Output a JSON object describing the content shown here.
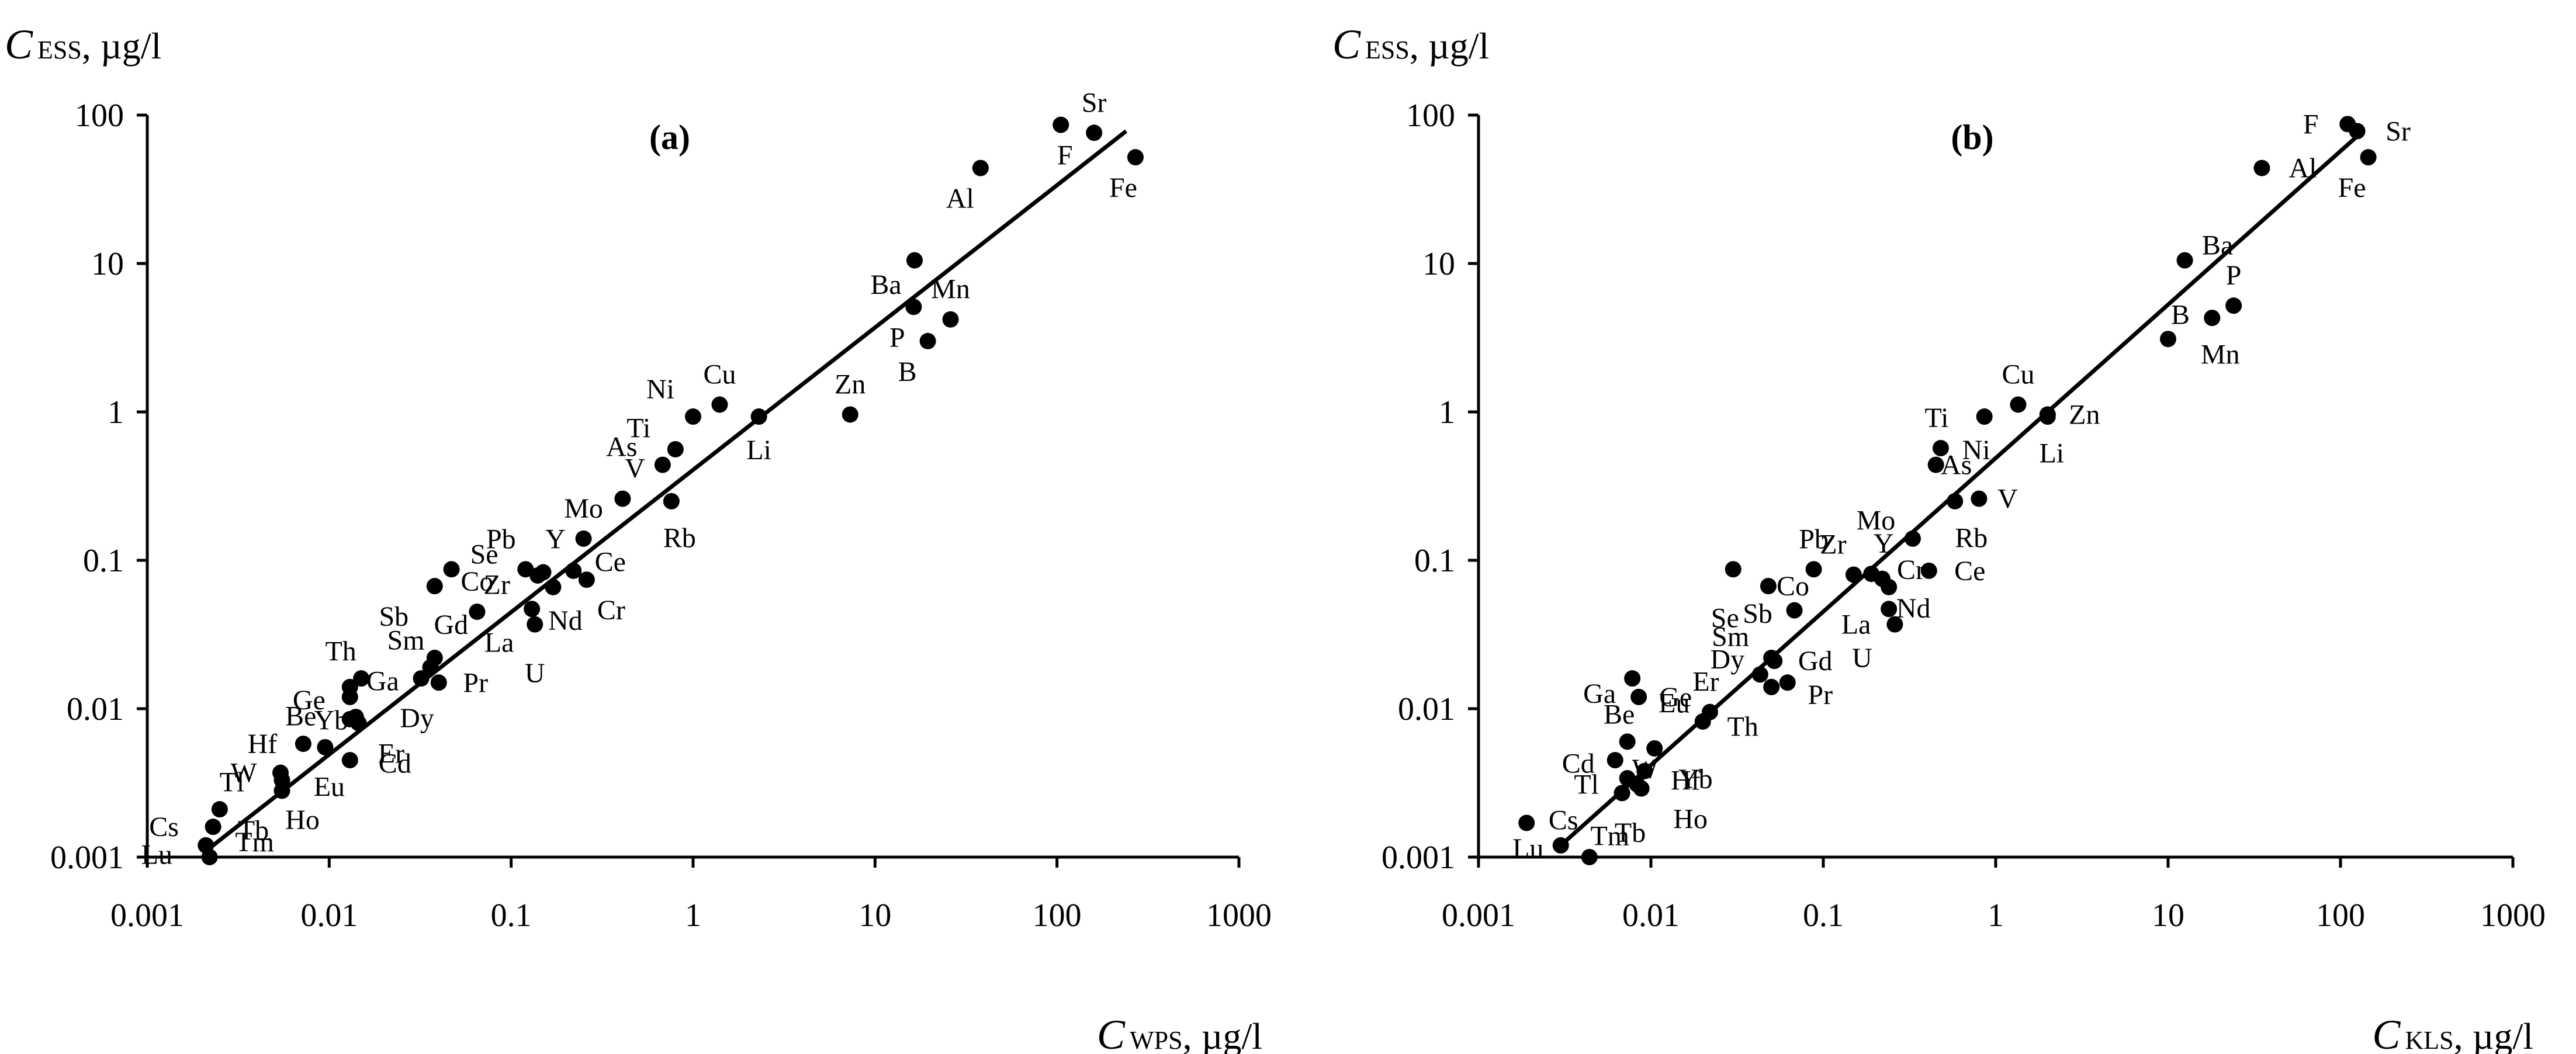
{
  "chart_data": [
    {
      "type": "scatter",
      "panel_label": "(a)",
      "x_scale": "log",
      "y_scale": "log",
      "xlim": [
        0.001,
        1000
      ],
      "ylim": [
        0.001,
        100
      ],
      "xlabel": {
        "symbol": "C",
        "subscript": "WPS",
        "unit": ", µg/l"
      },
      "ylabel": {
        "symbol": "C",
        "subscript": "ESS",
        "unit": ", µg/l"
      },
      "x_ticks": [
        "0.001",
        "0.01",
        "0.1",
        "1",
        "10",
        "100",
        "1000"
      ],
      "y_ticks": [
        "0.001",
        "0.01",
        "0.1",
        "1",
        "10",
        "100"
      ],
      "trendline": {
        "x1": 0.0021,
        "y1": 0.0011,
        "x2": 240,
        "y2": 78
      },
      "points": [
        {
          "label": "Sr",
          "x": 160,
          "y": 76,
          "lx": 0,
          "ly": -1
        },
        {
          "label": "F",
          "x": 105,
          "y": 86,
          "lx": 0.1,
          "ly": 1
        },
        {
          "label": "Fe",
          "x": 270,
          "y": 52,
          "lx": -0.3,
          "ly": 1
        },
        {
          "label": "Al",
          "x": 38,
          "y": 44,
          "lx": -0.5,
          "ly": 1
        },
        {
          "label": "Ba",
          "x": 16.5,
          "y": 10.5,
          "lx": -0.7,
          "ly": 0.8
        },
        {
          "label": "Mn",
          "x": 26,
          "y": 4.2,
          "lx": 0,
          "ly": -1
        },
        {
          "label": "P",
          "x": 16.3,
          "y": 5.1,
          "lx": -0.4,
          "ly": 1
        },
        {
          "label": "B",
          "x": 19.5,
          "y": 3.0,
          "lx": -0.5,
          "ly": 1
        },
        {
          "label": "Cu",
          "x": 1.4,
          "y": 1.12,
          "lx": 0,
          "ly": -1
        },
        {
          "label": "Ni",
          "x": 1.0,
          "y": 0.93,
          "lx": -0.8,
          "ly": -0.9
        },
        {
          "label": "Li",
          "x": 2.3,
          "y": 0.93,
          "lx": 0,
          "ly": 1.1
        },
        {
          "label": "Zn",
          "x": 7.3,
          "y": 0.96,
          "lx": 0,
          "ly": -1
        },
        {
          "label": "Ti",
          "x": 0.8,
          "y": 0.56,
          "lx": -0.9,
          "ly": -0.7
        },
        {
          "label": "As",
          "x": 0.68,
          "y": 0.44,
          "lx": -1,
          "ly": -0.6
        },
        {
          "label": "V",
          "x": 0.41,
          "y": 0.26,
          "lx": 0.3,
          "ly": -1
        },
        {
          "label": "Rb",
          "x": 0.76,
          "y": 0.25,
          "lx": 0.2,
          "ly": 1.2
        },
        {
          "label": "Mo",
          "x": 0.25,
          "y": 0.14,
          "lx": 0,
          "ly": -1
        },
        {
          "label": "Pb",
          "x": 0.12,
          "y": 0.087,
          "lx": -0.6,
          "ly": -1
        },
        {
          "label": "Y",
          "x": 0.15,
          "y": 0.083,
          "lx": 0.3,
          "ly": -1.1
        },
        {
          "label": "Ce",
          "x": 0.22,
          "y": 0.085,
          "lx": 0.9,
          "ly": -0.3
        },
        {
          "label": "Zr",
          "x": 0.14,
          "y": 0.079,
          "lx": -1,
          "ly": 0.3
        },
        {
          "label": "Nd",
          "x": 0.17,
          "y": 0.066,
          "lx": 0.3,
          "ly": 1.1
        },
        {
          "label": "Cr",
          "x": 0.26,
          "y": 0.074,
          "lx": 0.6,
          "ly": 1
        },
        {
          "label": "La",
          "x": 0.13,
          "y": 0.047,
          "lx": -0.8,
          "ly": 1.1
        },
        {
          "label": "U",
          "x": 0.135,
          "y": 0.037,
          "lx": 0,
          "ly": 1.6
        },
        {
          "label": "Se",
          "x": 0.047,
          "y": 0.087,
          "lx": 0.8,
          "ly": -0.5
        },
        {
          "label": "Sb",
          "x": 0.038,
          "y": 0.067,
          "lx": -1,
          "ly": 1
        },
        {
          "label": "Co",
          "x": 0.065,
          "y": 0.045,
          "lx": 0,
          "ly": -1
        },
        {
          "label": "Gd",
          "x": 0.038,
          "y": 0.022,
          "lx": 0.4,
          "ly": -1.1
        },
        {
          "label": "Sm",
          "x": 0.036,
          "y": 0.019,
          "lx": -0.6,
          "ly": -0.9
        },
        {
          "label": "Pr",
          "x": 0.04,
          "y": 0.015,
          "lx": 0.9,
          "ly": 0
        },
        {
          "label": "Dy",
          "x": 0.032,
          "y": 0.016,
          "lx": -0.1,
          "ly": 1.3
        },
        {
          "label": "Th",
          "x": 0.015,
          "y": 0.016,
          "lx": -0.5,
          "ly": -0.9
        },
        {
          "label": "Ga",
          "x": 0.013,
          "y": 0.014,
          "lx": 0.8,
          "ly": -0.2
        },
        {
          "label": "Ge",
          "x": 0.013,
          "y": 0.012,
          "lx": -1,
          "ly": 0.1
        },
        {
          "label": "Be",
          "x": 0.013,
          "y": 0.0085,
          "lx": -1.2,
          "ly": -0.1
        },
        {
          "label": "Yb",
          "x": 0.014,
          "y": 0.0088,
          "lx": -0.6,
          "ly": 0.1
        },
        {
          "label": "Er",
          "x": 0.0145,
          "y": 0.008,
          "lx": 0.8,
          "ly": 1
        },
        {
          "label": "Hf",
          "x": 0.0072,
          "y": 0.0058,
          "lx": -1,
          "ly": 0
        },
        {
          "label": "Eu",
          "x": 0.0095,
          "y": 0.0055,
          "lx": 0.1,
          "ly": 1.3
        },
        {
          "label": "Cd",
          "x": 0.013,
          "y": 0.0045,
          "lx": 1.1,
          "ly": 0.1
        },
        {
          "label": "W",
          "x": 0.0054,
          "y": 0.0037,
          "lx": -0.9,
          "ly": 0
        },
        {
          "label": "Tl",
          "x": 0.0025,
          "y": 0.0021,
          "lx": 0.3,
          "ly": -0.9
        },
        {
          "label": "Ho",
          "x": 0.0055,
          "y": 0.0033,
          "lx": 0.5,
          "ly": 1.3
        },
        {
          "label": "Tb",
          "x": 0.0055,
          "y": 0.0028,
          "lx": -0.7,
          "ly": 1.3
        },
        {
          "label": "Cs",
          "x": 0.0023,
          "y": 0.0016,
          "lx": -1.2,
          "ly": 0
        },
        {
          "label": "Lu",
          "x": 0.0021,
          "y": 0.0012,
          "lx": -1.2,
          "ly": 0.3
        },
        {
          "label": "Tm",
          "x": 0.0022,
          "y": 0.001,
          "lx": 1.1,
          "ly": -0.5
        }
      ]
    },
    {
      "type": "scatter",
      "panel_label": "(b)",
      "x_scale": "log",
      "y_scale": "log",
      "xlim": [
        0.001,
        1000
      ],
      "ylim": [
        0.001,
        100
      ],
      "xlabel": {
        "symbol": "C",
        "subscript": "KLS",
        "unit": ", µg/l"
      },
      "ylabel": {
        "symbol": "C",
        "subscript": "ESS",
        "unit": ", µg/l"
      },
      "x_ticks": [
        "0.001",
        "0.01",
        "0.1",
        "1",
        "10",
        "100",
        "1000"
      ],
      "y_ticks": [
        "0.001",
        "0.01",
        "0.1",
        "1",
        "10",
        "100"
      ],
      "trendline": {
        "x1": 0.003,
        "y1": 0.0012,
        "x2": 135,
        "y2": 78
      },
      "points": [
        {
          "label": "F",
          "x": 110,
          "y": 87,
          "lx": -0.9,
          "ly": 0
        },
        {
          "label": "Sr",
          "x": 125,
          "y": 78,
          "lx": 1,
          "ly": 0
        },
        {
          "label": "Fe",
          "x": 145,
          "y": 52,
          "lx": -0.4,
          "ly": 1
        },
        {
          "label": "Al",
          "x": 35,
          "y": 44,
          "lx": 1,
          "ly": 0
        },
        {
          "label": "Ba",
          "x": 12.5,
          "y": 10.5,
          "lx": 0.8,
          "ly": -0.5
        },
        {
          "label": "P",
          "x": 24,
          "y": 5.2,
          "lx": 0,
          "ly": -1
        },
        {
          "label": "B",
          "x": 10,
          "y": 3.1,
          "lx": 0.3,
          "ly": -0.8
        },
        {
          "label": "Mn",
          "x": 18,
          "y": 4.3,
          "lx": 0.2,
          "ly": 1.2
        },
        {
          "label": "Cu",
          "x": 1.35,
          "y": 1.12,
          "lx": 0,
          "ly": -1
        },
        {
          "label": "Ti",
          "x": 0.48,
          "y": 0.57,
          "lx": -0.1,
          "ly": -1
        },
        {
          "label": "Ni",
          "x": 0.86,
          "y": 0.93,
          "lx": -0.2,
          "ly": 1.1
        },
        {
          "label": "As",
          "x": 0.45,
          "y": 0.44,
          "lx": 0.5,
          "ly": 0
        },
        {
          "label": "Zn",
          "x": 2.0,
          "y": 0.96,
          "lx": 0.9,
          "ly": 0
        },
        {
          "label": "Li",
          "x": 2.0,
          "y": 0.93,
          "lx": 0.1,
          "ly": 1.2
        },
        {
          "label": "V",
          "x": 0.8,
          "y": 0.26,
          "lx": 0.7,
          "ly": 0
        },
        {
          "label": "Rb",
          "x": 0.58,
          "y": 0.25,
          "lx": 0.4,
          "ly": 1.2
        },
        {
          "label": "Mo",
          "x": 0.33,
          "y": 0.14,
          "lx": -0.9,
          "ly": -0.6
        },
        {
          "label": "Pb",
          "x": 0.088,
          "y": 0.087,
          "lx": 0,
          "ly": -1
        },
        {
          "label": "Zr",
          "x": 0.15,
          "y": 0.08,
          "lx": -0.5,
          "ly": -1
        },
        {
          "label": "Y",
          "x": 0.19,
          "y": 0.081,
          "lx": 0.3,
          "ly": -1
        },
        {
          "label": "Cr",
          "x": 0.22,
          "y": 0.075,
          "lx": 0.7,
          "ly": -0.3
        },
        {
          "label": "Ce",
          "x": 0.41,
          "y": 0.085,
          "lx": 1,
          "ly": 0
        },
        {
          "label": "Nd",
          "x": 0.24,
          "y": 0.066,
          "lx": 0.6,
          "ly": 0.7
        },
        {
          "label": "La",
          "x": 0.24,
          "y": 0.047,
          "lx": -0.8,
          "ly": 0.5
        },
        {
          "label": "U",
          "x": 0.26,
          "y": 0.037,
          "lx": -0.8,
          "ly": 1.1
        },
        {
          "label": "Se",
          "x": 0.03,
          "y": 0.087,
          "lx": -0.2,
          "ly": 1.6
        },
        {
          "label": "Co",
          "x": 0.048,
          "y": 0.067,
          "lx": 0.6,
          "ly": 0
        },
        {
          "label": "Sb",
          "x": 0.068,
          "y": 0.046,
          "lx": -0.9,
          "ly": 0.1
        },
        {
          "label": "Sm",
          "x": 0.05,
          "y": 0.022,
          "lx": -1,
          "ly": -0.7
        },
        {
          "label": "Gd",
          "x": 0.052,
          "y": 0.021,
          "lx": 1,
          "ly": 0
        },
        {
          "label": "Dy",
          "x": 0.043,
          "y": 0.017,
          "lx": -0.8,
          "ly": -0.5
        },
        {
          "label": "Pr",
          "x": 0.062,
          "y": 0.015,
          "lx": 0.8,
          "ly": 0.4
        },
        {
          "label": "Th",
          "x": 0.05,
          "y": 0.014,
          "lx": -0.7,
          "ly": 1.3
        },
        {
          "label": "Ga",
          "x": 0.0078,
          "y": 0.016,
          "lx": -0.8,
          "ly": 0.5
        },
        {
          "label": "Ge",
          "x": 0.0085,
          "y": 0.012,
          "lx": 0.9,
          "ly": 0
        },
        {
          "label": "Er",
          "x": 0.022,
          "y": 0.0095,
          "lx": -0.1,
          "ly": -1
        },
        {
          "label": "Eu",
          "x": 0.02,
          "y": 0.0082,
          "lx": -0.7,
          "ly": -0.6
        },
        {
          "label": "Be",
          "x": 0.0073,
          "y": 0.006,
          "lx": -0.2,
          "ly": -0.9
        },
        {
          "label": "Cd",
          "x": 0.0062,
          "y": 0.0045,
          "lx": -0.9,
          "ly": 0.1
        },
        {
          "label": "Yb",
          "x": 0.0105,
          "y": 0.0054,
          "lx": 1,
          "ly": 1
        },
        {
          "label": "Tl",
          "x": 0.0073,
          "y": 0.0034,
          "lx": -1,
          "ly": 0.2
        },
        {
          "label": "W",
          "x": 0.0083,
          "y": 0.0031,
          "lx": 0.2,
          "ly": -0.5
        },
        {
          "label": "Hf",
          "x": 0.0092,
          "y": 0.0038,
          "lx": 1,
          "ly": 0.3
        },
        {
          "label": "Tb",
          "x": 0.0068,
          "y": 0.0027,
          "lx": 0.2,
          "ly": 1.3
        },
        {
          "label": "Ho",
          "x": 0.0088,
          "y": 0.0029,
          "lx": 1.2,
          "ly": 1
        },
        {
          "label": "Cs",
          "x": 0.0019,
          "y": 0.0017,
          "lx": 0.9,
          "ly": -0.1
        },
        {
          "label": "Lu",
          "x": 0.003,
          "y": 0.0012,
          "lx": -0.8,
          "ly": 0.1
        },
        {
          "label": "Tm",
          "x": 0.0044,
          "y": 0.001,
          "lx": 0.5,
          "ly": -0.7
        }
      ]
    }
  ]
}
